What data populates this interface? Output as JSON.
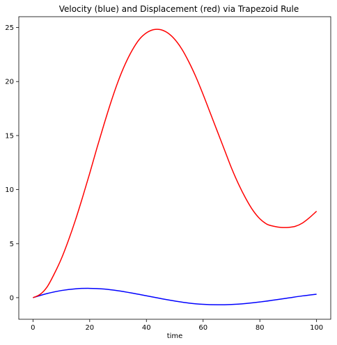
{
  "chart_data": {
    "type": "line",
    "title": "Velocity (blue) and Displacement (red) via Trapezoid Rule",
    "xlabel": "time",
    "ylabel": "",
    "xlim": [
      -5,
      105
    ],
    "ylim": [
      -2,
      26
    ],
    "xticks": [
      0,
      20,
      40,
      60,
      80,
      100
    ],
    "yticks": [
      0,
      5,
      10,
      15,
      20,
      25
    ],
    "grid": false,
    "legend": "none",
    "series": [
      {
        "color": "#0000ff",
        "x": [
          0,
          5,
          10,
          15,
          20,
          25,
          30,
          35,
          40,
          45,
          50,
          55,
          60,
          65,
          70,
          75,
          80,
          85,
          90,
          95,
          100
        ],
        "y": [
          0,
          0.38,
          0.66,
          0.82,
          0.86,
          0.8,
          0.64,
          0.42,
          0.17,
          -0.08,
          -0.31,
          -0.5,
          -0.62,
          -0.66,
          -0.63,
          -0.54,
          -0.4,
          -0.22,
          -0.03,
          0.16,
          0.32
        ]
      },
      {
        "color": "#ff0000",
        "x": [
          0,
          2.5,
          5,
          7.5,
          10,
          12.5,
          15,
          17.5,
          20,
          22.5,
          25,
          27.5,
          30,
          32.5,
          35,
          37.5,
          40,
          42.5,
          45,
          47.5,
          50,
          52.5,
          55,
          57.5,
          60,
          62.5,
          65,
          67.5,
          70,
          72.5,
          75,
          77.5,
          80,
          82.5,
          85,
          87.5,
          90,
          92.5,
          95,
          97.5,
          100
        ],
        "y": [
          0,
          0.3,
          1.0,
          2.2,
          3.6,
          5.3,
          7.2,
          9.3,
          11.5,
          13.8,
          16.0,
          18.1,
          20.0,
          21.6,
          22.9,
          23.9,
          24.5,
          24.8,
          24.8,
          24.5,
          23.9,
          23.0,
          21.8,
          20.4,
          18.8,
          17.1,
          15.4,
          13.7,
          12.0,
          10.5,
          9.2,
          8.1,
          7.3,
          6.8,
          6.6,
          6.5,
          6.5,
          6.6,
          6.9,
          7.4,
          8.0
        ]
      }
    ]
  }
}
